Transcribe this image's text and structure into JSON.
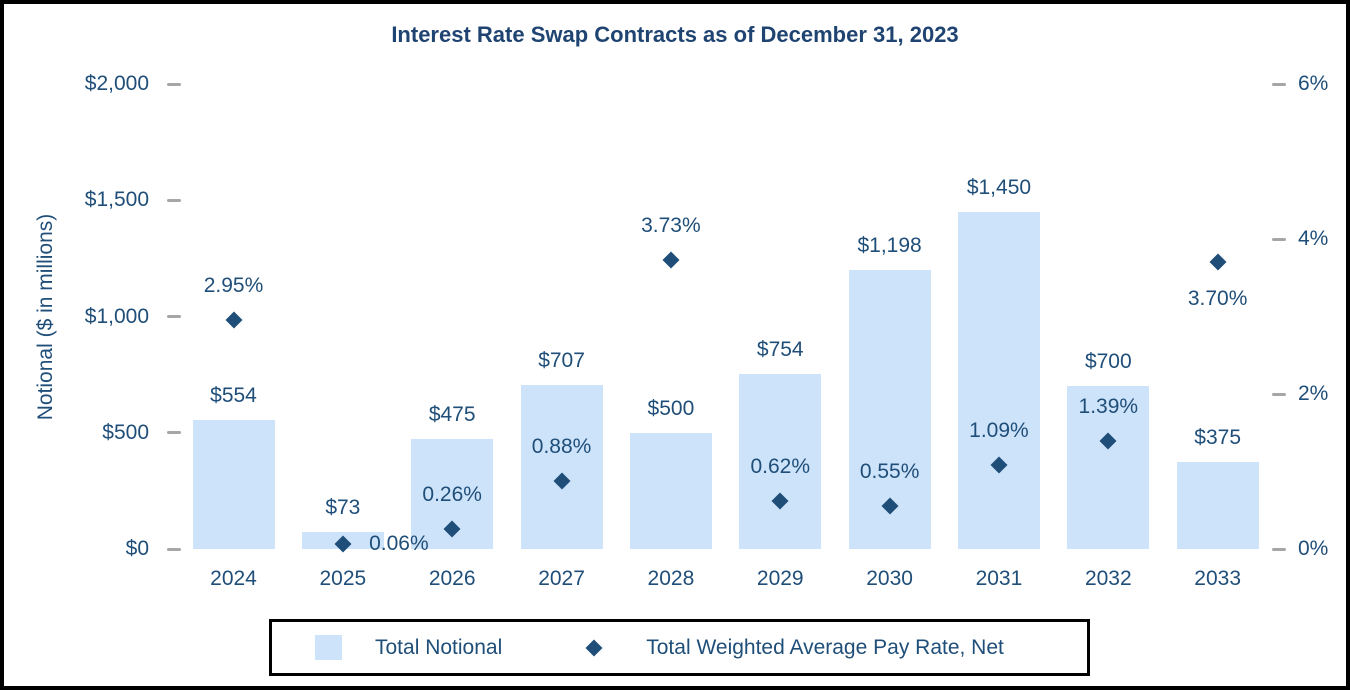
{
  "chart_data": {
    "type": "combo",
    "title": "Interest Rate Swap Contracts as of December 31, 2023",
    "categories": [
      "2024",
      "2025",
      "2026",
      "2027",
      "2028",
      "2029",
      "2030",
      "2031",
      "2032",
      "2033"
    ],
    "series": [
      {
        "name": "Total Notional",
        "type": "bar",
        "axis": "left",
        "color": "#CDE3FA",
        "values": [
          554,
          73,
          475,
          707,
          500,
          754,
          1198,
          1450,
          700,
          375
        ],
        "labels": [
          "$554",
          "$73",
          "$475",
          "$707",
          "$500",
          "$754",
          "$1,198",
          "$1,450",
          "$700",
          "$375"
        ]
      },
      {
        "name": "Total Weighted Average Pay Rate, Net",
        "type": "scatter",
        "marker": "diamond",
        "axis": "right",
        "color": "#1F4E79",
        "values": [
          2.95,
          0.06,
          0.26,
          0.88,
          3.73,
          0.62,
          0.55,
          1.09,
          1.39,
          3.7
        ],
        "labels": [
          "2.95%",
          "0.06%",
          "0.26%",
          "0.88%",
          "3.73%",
          "0.62%",
          "0.55%",
          "1.09%",
          "1.39%",
          "3.70%"
        ],
        "label_placement": [
          "above",
          "right",
          "above",
          "above",
          "above",
          "above",
          "above",
          "above",
          "above",
          "below"
        ]
      }
    ],
    "left_axis": {
      "title": "Notional ($ in millions)",
      "min": 0,
      "max": 2000,
      "ticks": [
        {
          "label": "$0",
          "value": 0
        },
        {
          "label": "$500",
          "value": 500
        },
        {
          "label": "$1,000",
          "value": 1000
        },
        {
          "label": "$1,500",
          "value": 1500
        },
        {
          "label": "$2,000",
          "value": 2000
        }
      ]
    },
    "right_axis": {
      "min": 0,
      "max": 6,
      "ticks": [
        {
          "label": "0%",
          "value": 0
        },
        {
          "label": "2%",
          "value": 2
        },
        {
          "label": "4%",
          "value": 4
        },
        {
          "label": "6%",
          "value": 6
        }
      ]
    },
    "legend_position": "bottom",
    "grid": false,
    "colors": {
      "title_text": "#1F4472",
      "navy_text": "#1F4E79",
      "bar_fill": "#CDE3FA",
      "marker_fill": "#1F4E79",
      "tick_dash": "#A6A6A6",
      "border": "#000000",
      "background": "#FFFFFF"
    }
  }
}
